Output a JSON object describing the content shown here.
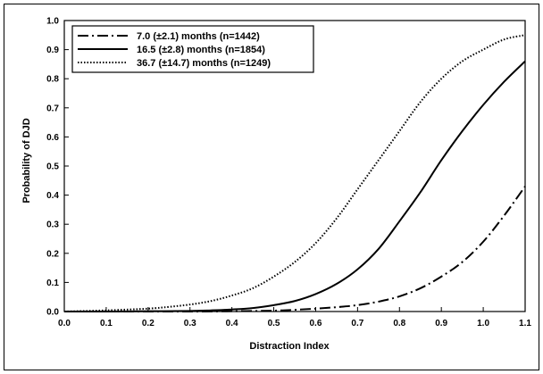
{
  "chart_data": {
    "type": "line",
    "title": "",
    "xlabel": "Distraction Index",
    "ylabel": "Probability of DJD",
    "xlim": [
      0.0,
      1.1
    ],
    "ylim": [
      0.0,
      1.0
    ],
    "x_ticks": [
      "0.0",
      "0.1",
      "0.2",
      "0.3",
      "0.4",
      "0.5",
      "0.6",
      "0.7",
      "0.8",
      "0.9",
      "1.0",
      "1.1"
    ],
    "y_ticks": [
      "0.0",
      "0.1",
      "0.2",
      "0.3",
      "0.4",
      "0.5",
      "0.6",
      "0.7",
      "0.8",
      "0.9",
      "1.0"
    ],
    "grid": false,
    "legend_position": "top-left",
    "series": [
      {
        "name": "7.0 (±2.1)  months (n=1442)",
        "line_style": "dash-dot",
        "x": [
          0.0,
          0.1,
          0.2,
          0.3,
          0.4,
          0.5,
          0.55,
          0.6,
          0.65,
          0.7,
          0.75,
          0.8,
          0.85,
          0.9,
          0.95,
          1.0,
          1.05,
          1.1
        ],
        "y": [
          0.0,
          0.0,
          0.0,
          0.0,
          0.001,
          0.003,
          0.006,
          0.01,
          0.015,
          0.022,
          0.034,
          0.052,
          0.08,
          0.12,
          0.17,
          0.24,
          0.33,
          0.43
        ]
      },
      {
        "name": "16.5 (±2.8)  months (n=1854)",
        "line_style": "solid",
        "x": [
          0.0,
          0.1,
          0.2,
          0.3,
          0.35,
          0.4,
          0.45,
          0.5,
          0.55,
          0.6,
          0.65,
          0.7,
          0.75,
          0.8,
          0.85,
          0.9,
          0.95,
          1.0,
          1.05,
          1.1
        ],
        "y": [
          0.0,
          0.0,
          0.001,
          0.002,
          0.004,
          0.007,
          0.012,
          0.022,
          0.036,
          0.06,
          0.095,
          0.145,
          0.215,
          0.31,
          0.41,
          0.52,
          0.62,
          0.71,
          0.79,
          0.86
        ]
      },
      {
        "name": "36.7 (±14.7) months (n=1249)",
        "line_style": "dotted",
        "x": [
          0.0,
          0.1,
          0.2,
          0.25,
          0.3,
          0.35,
          0.4,
          0.45,
          0.5,
          0.55,
          0.6,
          0.65,
          0.7,
          0.75,
          0.8,
          0.85,
          0.9,
          0.95,
          1.0,
          1.05,
          1.1
        ],
        "y": [
          0.0,
          0.004,
          0.01,
          0.016,
          0.024,
          0.036,
          0.055,
          0.08,
          0.12,
          0.17,
          0.235,
          0.32,
          0.42,
          0.52,
          0.62,
          0.72,
          0.8,
          0.86,
          0.9,
          0.935,
          0.95
        ]
      }
    ]
  },
  "colors": {
    "line": "#000000",
    "background": "#ffffff"
  }
}
